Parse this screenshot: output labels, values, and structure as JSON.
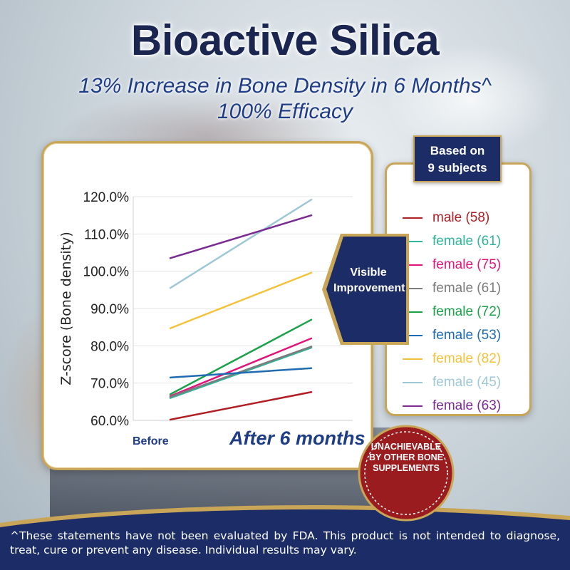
{
  "header": {
    "title": "Bioactive Silica",
    "subtitle_line1": "13% Increase in Bone Density in 6 Months^",
    "subtitle_line2": "100% Efficacy"
  },
  "badges": {
    "based_on_line1": "Based on",
    "based_on_line2": "9 subjects",
    "visible_line1": "Visible",
    "visible_line2": "Improvement",
    "seal_line1": "UNACHIEVABLE",
    "seal_line2": "BY OTHER BONE",
    "seal_line3": "SUPPLEMENTS"
  },
  "disclaimer": "^These statements have not been evaluated by FDA. This product is not intended to diagnose, treat, cure or prevent any disease. Individual results may vary.",
  "colors": {
    "navy": "#1c2c66",
    "gold": "#c8a557",
    "seal_red": "#9a1c1f"
  },
  "chart_data": {
    "type": "line",
    "title": "",
    "xlabel": "",
    "ylabel": "Z-score (Bone density)",
    "categories": [
      "Before",
      "After 6 months"
    ],
    "ylim": [
      60,
      120
    ],
    "yticks": [
      60,
      70,
      80,
      90,
      100,
      110,
      120
    ],
    "ytick_labels": [
      "60.0%",
      "70.0%",
      "80.0%",
      "90.0%",
      "100.0%",
      "110.0%",
      "120.0%"
    ],
    "grid": true,
    "legend_position": "right",
    "series": [
      {
        "name": "male (58)",
        "color": "#b01e23",
        "values": [
          60.2,
          67.6
        ]
      },
      {
        "name": "female (61)",
        "color": "#2fb59c",
        "values": [
          66.0,
          79.5
        ]
      },
      {
        "name": "female (75)",
        "color": "#e0157a",
        "values": [
          66.5,
          82.0
        ]
      },
      {
        "name": "female (61)",
        "color": "#7c7c7c",
        "values": [
          66.3,
          79.8
        ]
      },
      {
        "name": "female (72)",
        "color": "#1ba14a",
        "values": [
          67.0,
          87.0
        ]
      },
      {
        "name": "female (53)",
        "color": "#1f6bb2",
        "values": [
          71.5,
          74.0
        ]
      },
      {
        "name": "female (82)",
        "color": "#f2c23a",
        "values": [
          84.7,
          99.6
        ]
      },
      {
        "name": "female (45)",
        "color": "#9fc8d6",
        "values": [
          95.5,
          119.2
        ]
      },
      {
        "name": "female (63)",
        "color": "#7a2b92",
        "values": [
          103.5,
          115.0
        ]
      }
    ]
  }
}
